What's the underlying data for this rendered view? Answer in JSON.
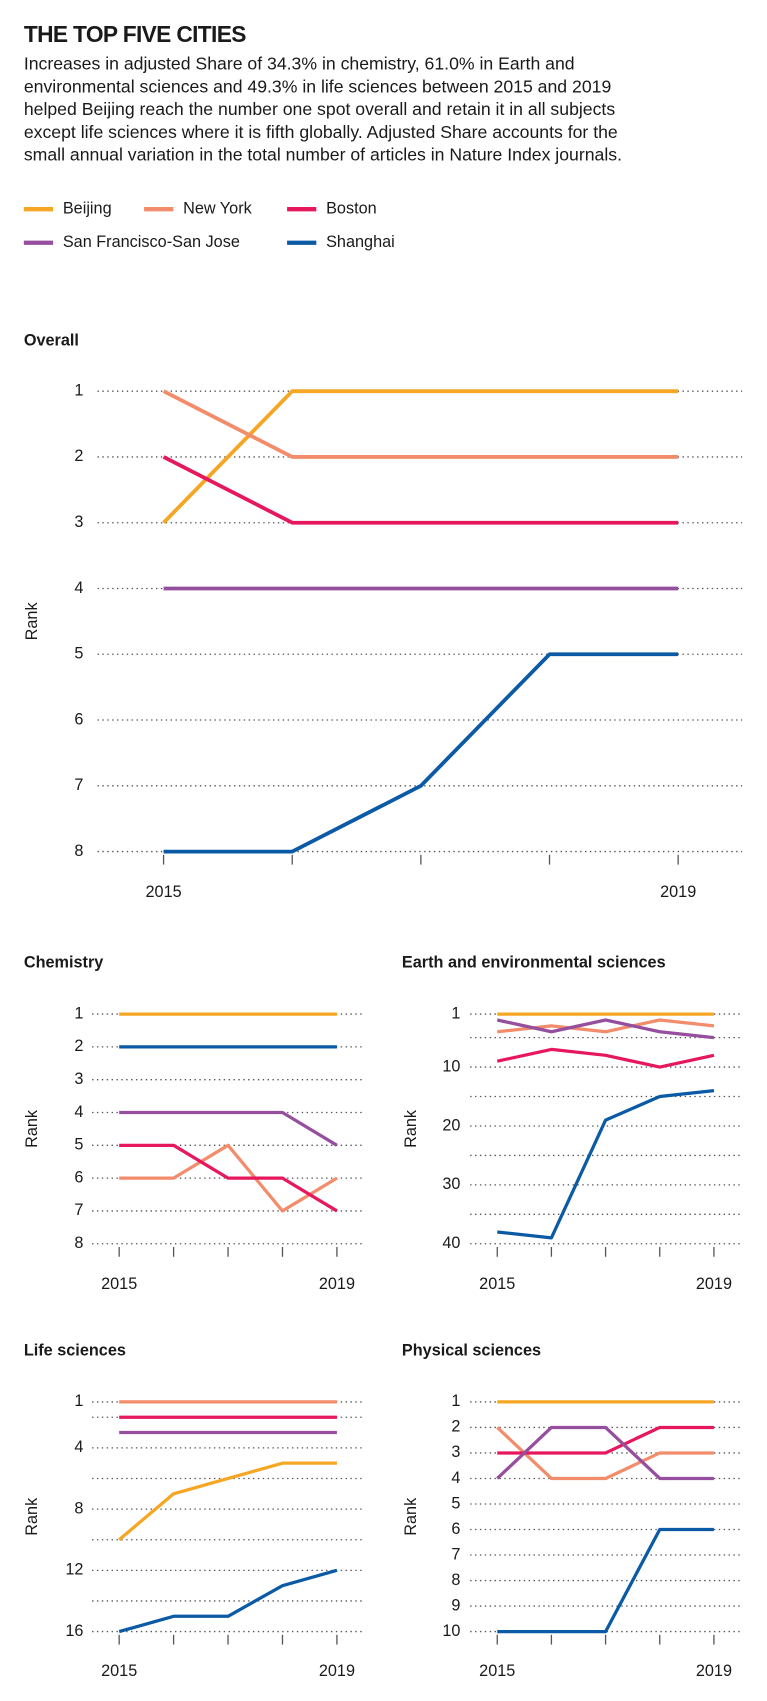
{
  "header": {
    "title": "THE TOP FIVE CITIES",
    "description_lines": [
      "Increases in adjusted Share of 34.3% in chemistry, 61.0% in Earth and",
      "environmental sciences and 49.3% in life sciences between 2015 and 2019",
      "helped Beijing reach the number one spot overall and retain it in all subjects",
      "except life sciences where it is fifth globally. Adjusted Share accounts for the",
      "small annual variation in the total number of articles in Nature Index journals."
    ]
  },
  "chart_data": [
    {
      "type": "line",
      "title": "Overall",
      "ylabel": "Rank",
      "x": [
        2015,
        2016,
        2017,
        2018,
        2019
      ],
      "xticks": [
        2015,
        2019
      ],
      "ylim": [
        8,
        1
      ],
      "yticks": [
        1,
        2,
        3,
        4,
        5,
        6,
        7,
        8
      ],
      "grid": true,
      "series": [
        {
          "name": "Beijing",
          "color": "#f5a623",
          "values": [
            3,
            1,
            1,
            1,
            1
          ]
        },
        {
          "name": "New York",
          "color": "#f28c6b",
          "values": [
            1,
            2,
            2,
            2,
            2
          ]
        },
        {
          "name": "Boston",
          "color": "#e6175c",
          "values": [
            2,
            3,
            3,
            3,
            3
          ]
        },
        {
          "name": "San Francisco-San Jose",
          "color": "#964f9e",
          "values": [
            4,
            4,
            4,
            4,
            4
          ]
        },
        {
          "name": "Shanghai",
          "color": "#0b5aa5",
          "values": [
            8,
            8,
            7,
            5,
            5
          ]
        }
      ]
    },
    {
      "type": "line",
      "title": "Chemistry",
      "ylabel": "Rank",
      "x": [
        2015,
        2016,
        2017,
        2018,
        2019
      ],
      "xticks": [
        2015,
        2019
      ],
      "ylim": [
        8,
        1
      ],
      "yticks": [
        1,
        2,
        3,
        4,
        5,
        6,
        7,
        8
      ],
      "grid": true,
      "series": [
        {
          "color": "#f5a623",
          "values": [
            1,
            1,
            1,
            1,
            1
          ]
        },
        {
          "color": "#f28c6b",
          "values": [
            6,
            6,
            5,
            7,
            6
          ]
        },
        {
          "color": "#e6175c",
          "values": [
            5,
            5,
            6,
            6,
            7
          ]
        },
        {
          "color": "#964f9e",
          "values": [
            4,
            4,
            4,
            4,
            5
          ]
        },
        {
          "color": "#0b5aa5",
          "values": [
            2,
            2,
            2,
            2,
            2
          ]
        }
      ]
    },
    {
      "type": "line",
      "title": "Earth and environmental sciences",
      "ylabel": "Rank",
      "x": [
        2015,
        2016,
        2017,
        2018,
        2019
      ],
      "xticks": [
        2015,
        2019
      ],
      "ylim": [
        40,
        1
      ],
      "yticks": [
        1,
        10,
        20,
        30,
        40
      ],
      "minor_yticks": [
        5,
        15,
        25,
        35
      ],
      "grid": true,
      "series": [
        {
          "color": "#f5a623",
          "values": [
            1,
            1,
            1,
            1,
            1
          ]
        },
        {
          "color": "#f28c6b",
          "values": [
            4,
            3,
            4,
            2,
            3
          ]
        },
        {
          "color": "#e6175c",
          "values": [
            9,
            7,
            8,
            10,
            8
          ]
        },
        {
          "color": "#964f9e",
          "values": [
            2,
            4,
            2,
            4,
            5
          ]
        },
        {
          "color": "#0b5aa5",
          "values": [
            38,
            39,
            19,
            15,
            14
          ]
        }
      ]
    },
    {
      "type": "line",
      "title": "Life sciences",
      "ylabel": "Rank",
      "x": [
        2015,
        2016,
        2017,
        2018,
        2019
      ],
      "xticks": [
        2015,
        2019
      ],
      "ylim": [
        16,
        1
      ],
      "yticks": [
        1,
        4,
        8,
        12,
        16
      ],
      "minor_yticks": [
        2,
        6,
        10,
        14
      ],
      "grid": true,
      "series": [
        {
          "color": "#f5a623",
          "values": [
            10,
            7,
            6,
            5,
            5
          ]
        },
        {
          "color": "#f28c6b",
          "values": [
            1,
            1,
            1,
            1,
            1
          ]
        },
        {
          "color": "#e6175c",
          "values": [
            2,
            2,
            2,
            2,
            2
          ]
        },
        {
          "color": "#964f9e",
          "values": [
            3,
            3,
            3,
            3,
            3
          ]
        },
        {
          "color": "#0b5aa5",
          "values": [
            16,
            15,
            15,
            13,
            12
          ]
        }
      ]
    },
    {
      "type": "line",
      "title": "Physical sciences",
      "ylabel": "Rank",
      "x": [
        2015,
        2016,
        2017,
        2018,
        2019
      ],
      "xticks": [
        2015,
        2019
      ],
      "ylim": [
        10,
        1
      ],
      "yticks": [
        1,
        2,
        3,
        4,
        5,
        6,
        7,
        8,
        9,
        10
      ],
      "grid": true,
      "series": [
        {
          "color": "#f5a623",
          "values": [
            1,
            1,
            1,
            1,
            1
          ]
        },
        {
          "color": "#f28c6b",
          "values": [
            2,
            4,
            4,
            3,
            3
          ]
        },
        {
          "color": "#e6175c",
          "values": [
            3,
            3,
            3,
            2,
            2
          ]
        },
        {
          "color": "#964f9e",
          "values": [
            4,
            2,
            2,
            4,
            4
          ]
        },
        {
          "color": "#0b5aa5",
          "values": [
            10,
            10,
            10,
            6,
            6
          ]
        }
      ]
    }
  ]
}
